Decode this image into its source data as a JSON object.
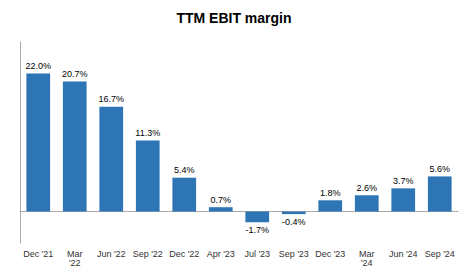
{
  "chart_data": {
    "type": "bar",
    "title": "TTM EBIT margin",
    "categories": [
      "Dec '21",
      "Mar\n'22",
      "Jun '22",
      "Sep '22",
      "Dec '22",
      "Apr '23",
      "Jul '23",
      "Sep '23",
      "Dec '23",
      "Mar\n'24",
      "Jun '24",
      "Sep '24"
    ],
    "values": [
      22.0,
      20.7,
      16.7,
      11.3,
      5.4,
      0.7,
      -1.7,
      -0.4,
      1.8,
      2.6,
      3.7,
      5.6
    ],
    "value_labels": [
      "22.0%",
      "20.7%",
      "16.7%",
      "11.3%",
      "5.4%",
      "0.7%",
      "-1.7%",
      "-0.4%",
      "1.8%",
      "2.6%",
      "3.7%",
      "5.6%"
    ],
    "color": "#2E75B6",
    "ylim": [
      -5,
      27
    ],
    "grid": false,
    "data_labels": true,
    "tick_labels": "x"
  }
}
